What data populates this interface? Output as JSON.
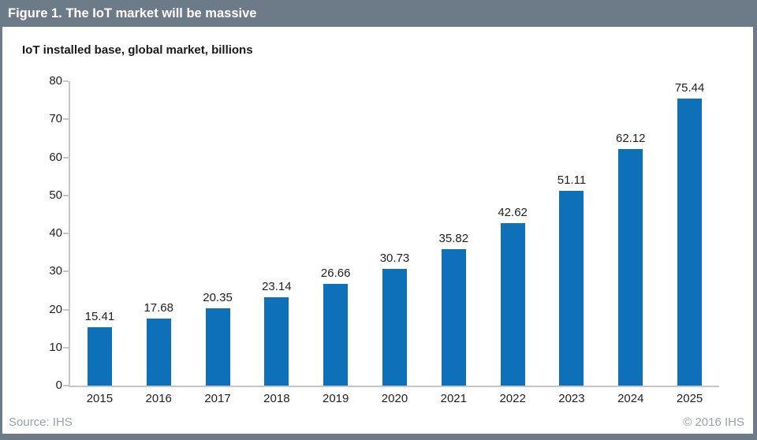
{
  "header": {
    "title": "Figure 1. The IoT market will be massive"
  },
  "chart_data": {
    "type": "bar",
    "title": "IoT installed base, global market, billions",
    "categories": [
      "2015",
      "2016",
      "2017",
      "2018",
      "2019",
      "2020",
      "2021",
      "2022",
      "2023",
      "2024",
      "2025"
    ],
    "values": [
      15.41,
      17.68,
      20.35,
      23.14,
      26.66,
      30.73,
      35.82,
      42.62,
      51.11,
      62.12,
      75.44
    ],
    "xlabel": "",
    "ylabel": "",
    "ylim": [
      0,
      80
    ],
    "ytick_step": 10,
    "grid": false,
    "legend": false,
    "data_labels": true
  },
  "footer": {
    "source": "Source: IHS",
    "copyright": "© 2016 IHS"
  },
  "colors": {
    "header_bg": "#6d7a88",
    "bar": "#0e70b8",
    "axis": "#c6c6c6",
    "muted_text": "#9aa0a5",
    "label_text": "#1f1f1f"
  }
}
